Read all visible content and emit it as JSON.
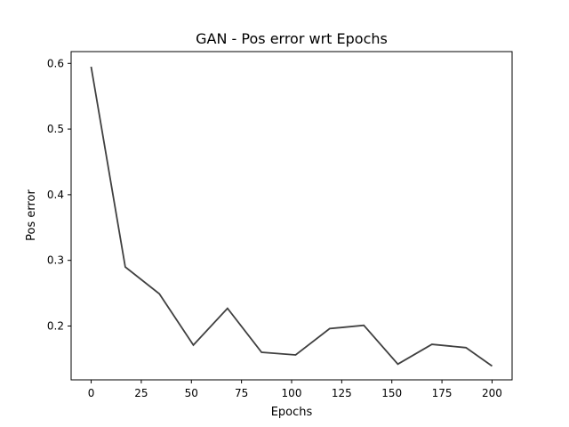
{
  "chart_data": {
    "type": "line",
    "title": "GAN - Pos error wrt Epochs",
    "xlabel": "Epochs",
    "ylabel": "Pos error",
    "xlim": [
      -10,
      210
    ],
    "ylim": [
      0.118,
      0.618
    ],
    "xticks": [
      0,
      25,
      50,
      75,
      100,
      125,
      150,
      175,
      200
    ],
    "xtick_labels": [
      "0",
      "25",
      "50",
      "75",
      "100",
      "125",
      "150",
      "175",
      "200"
    ],
    "yticks": [
      0.2,
      0.3,
      0.4,
      0.5,
      0.6
    ],
    "ytick_labels": [
      "0.2",
      "0.3",
      "0.4",
      "0.5",
      "0.6"
    ],
    "grid": false,
    "line_color": "#404040",
    "series": [
      {
        "x": [
          0,
          17,
          34,
          51,
          68,
          85,
          102,
          119,
          136,
          153,
          170,
          187,
          200
        ],
        "values": [
          0.595,
          0.29,
          0.249,
          0.171,
          0.227,
          0.16,
          0.156,
          0.196,
          0.201,
          0.142,
          0.172,
          0.167,
          0.139
        ]
      }
    ]
  }
}
